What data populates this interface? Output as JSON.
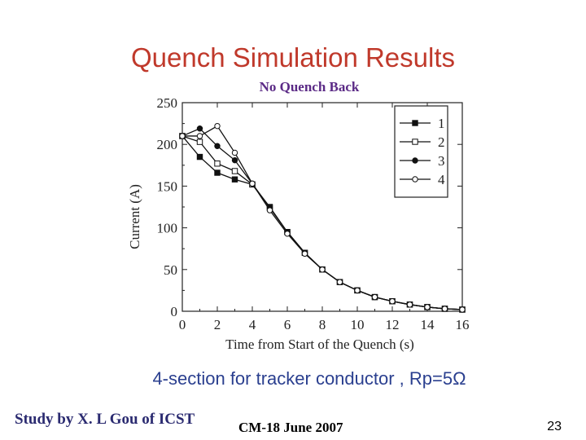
{
  "slide": {
    "title": "Quench Simulation Results",
    "subtitle": "No Quench Back",
    "caption": "4-section for tracker conductor , Rp=5Ω",
    "footer_left": "Study by X. L Gou of ICST",
    "footer_mid": "CM-18 June 2007",
    "page_number": "23"
  },
  "chart_data": {
    "type": "line",
    "title": "",
    "xlabel": "Time from Start of the Quench (s)",
    "ylabel": "Current (A)",
    "xlim": [
      0,
      16
    ],
    "ylim": [
      0,
      250
    ],
    "xticks": [
      0,
      2,
      4,
      6,
      8,
      10,
      12,
      14,
      16
    ],
    "yticks": [
      0,
      50,
      100,
      150,
      200,
      250
    ],
    "legend_position": "top-right",
    "grid": false,
    "series": [
      {
        "name": "1",
        "marker": "filled-square",
        "x": [
          0,
          1,
          2,
          3,
          4,
          5,
          6,
          7,
          8,
          9,
          10,
          11,
          12,
          13,
          14,
          15,
          16
        ],
        "y": [
          210,
          185,
          166,
          158,
          152,
          125,
          95,
          70,
          50,
          35,
          25,
          17,
          12,
          8,
          5,
          3,
          2
        ]
      },
      {
        "name": "2",
        "marker": "open-square",
        "x": [
          0,
          1,
          2,
          3,
          4,
          5,
          6,
          7,
          8,
          9,
          10,
          11,
          12,
          13,
          14,
          15,
          16
        ],
        "y": [
          210,
          203,
          177,
          168,
          152,
          124,
          95,
          70,
          50,
          35,
          25,
          17,
          12,
          8,
          5,
          3,
          2
        ]
      },
      {
        "name": "3",
        "marker": "filled-circle",
        "x": [
          0,
          1,
          2,
          3,
          4,
          5,
          6,
          7,
          8,
          9,
          10,
          11,
          12,
          13,
          14,
          15,
          16
        ],
        "y": [
          210,
          219,
          198,
          181,
          153,
          124,
          95,
          70,
          50,
          35,
          25,
          17,
          12,
          8,
          5,
          3,
          2
        ]
      },
      {
        "name": "4",
        "marker": "open-circle",
        "x": [
          0,
          1,
          2,
          3,
          4,
          5,
          6,
          7,
          8,
          9,
          10,
          11,
          12,
          13,
          14,
          15,
          16
        ],
        "y": [
          210,
          210,
          222,
          190,
          153,
          121,
          93,
          69,
          50,
          35,
          25,
          17,
          12,
          8,
          5,
          3,
          2
        ]
      }
    ]
  }
}
